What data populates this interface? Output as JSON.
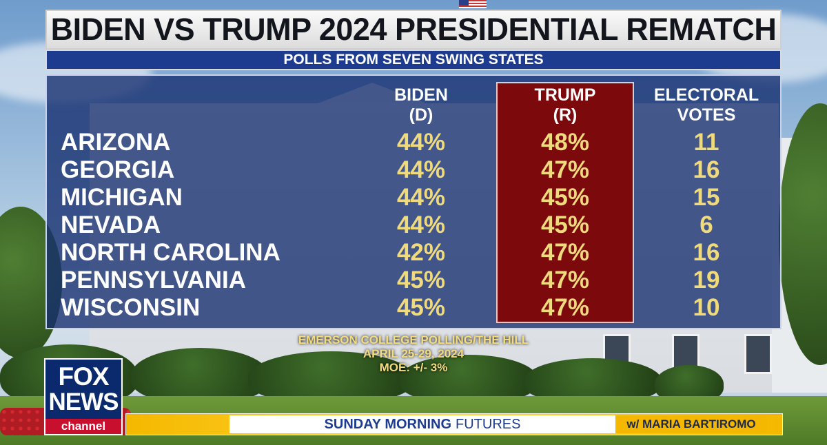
{
  "title": "BIDEN VS TRUMP 2024 PRESIDENTIAL REMATCH",
  "subtitle": "POLLS FROM SEVEN SWING STATES",
  "headers": {
    "biden_line1": "BIDEN",
    "biden_line2": "(D)",
    "trump_line1": "TRUMP",
    "trump_line2": "(R)",
    "ev_line1": "ELECTORAL",
    "ev_line2": "VOTES"
  },
  "rows": [
    {
      "state": "ARIZONA",
      "biden": "44%",
      "trump": "48%",
      "ev": "11"
    },
    {
      "state": "GEORGIA",
      "biden": "44%",
      "trump": "47%",
      "ev": "16"
    },
    {
      "state": "MICHIGAN",
      "biden": "44%",
      "trump": "45%",
      "ev": "15"
    },
    {
      "state": "NEVADA",
      "biden": "44%",
      "trump": "45%",
      "ev": "6"
    },
    {
      "state": "NORTH CAROLINA",
      "biden": "42%",
      "trump": "47%",
      "ev": "16"
    },
    {
      "state": "PENNSYLVANIA",
      "biden": "45%",
      "trump": "47%",
      "ev": "19"
    },
    {
      "state": "WISCONSIN",
      "biden": "45%",
      "trump": "47%",
      "ev": "10"
    }
  ],
  "source": {
    "line1": "EMERSON COLLEGE POLLING/THE HILL",
    "line2": "APRIL 25-29, 2024",
    "line3": "MOE: +/- 3%"
  },
  "logo": {
    "line1": "FOX",
    "line2": "NEWS",
    "line3": "channel"
  },
  "lower_third": {
    "show_bold": "SUNDAY MORNING",
    "show_light": "FUTURES",
    "host": "w/ MARIA BARTIROMO"
  },
  "colors": {
    "panel_blue": "#1d3c8f",
    "trump_red": "#7c0a0c",
    "value_yellow": "#f0da7e",
    "lower_third_gold": "#f5b800"
  }
}
